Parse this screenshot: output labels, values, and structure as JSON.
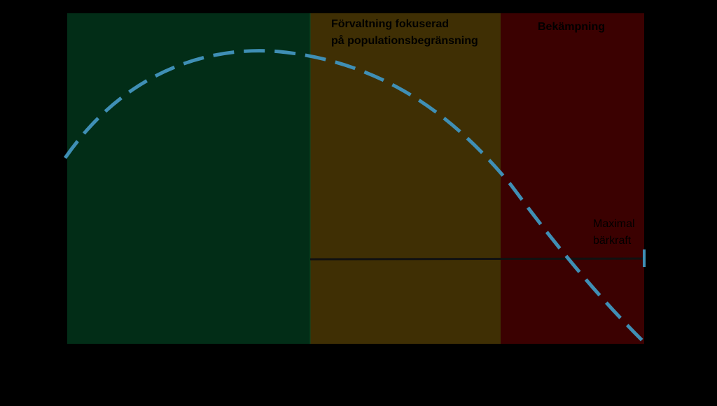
{
  "zones": [
    {
      "id": "green",
      "label": "",
      "color": "#022d17"
    },
    {
      "id": "yellow",
      "label_line1": "Förvaltning fokuserad",
      "label_line2": "på populationsbegränsning",
      "color": "#3f2f04"
    },
    {
      "id": "red",
      "label": "Bekämpning",
      "color": "#3b0101"
    }
  ],
  "capacity_label_line1": "Maximal",
  "capacity_label_line2": "bärkraft",
  "colors": {
    "background": "#000000",
    "curve": "#3f8fb5",
    "capacity_line": "#111111"
  },
  "curve_style": "dashed"
}
